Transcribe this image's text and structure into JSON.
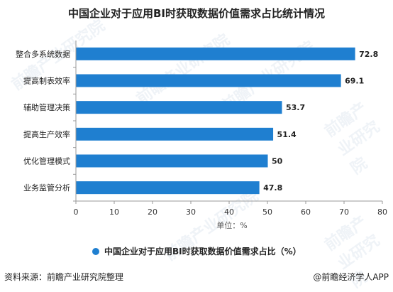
{
  "title": "中国企业对于应用BI时获取数据价值需求占比统计情况",
  "footer": {
    "source": "资料来源：前瞻产业研究院整理",
    "brand": "@前瞻经济学人APP"
  },
  "watermark": {
    "text": "前瞻产业研究院"
  },
  "chart_data": {
    "type": "bar",
    "orientation": "horizontal",
    "categories": [
      "整合多系统数据",
      "提高制表效率",
      "辅助管理决策",
      "提高生产效率",
      "优化管理模式",
      "业务监管分析"
    ],
    "series": [
      {
        "name": "中国企业对于应用BI时获取数据价值需求占比（%）",
        "values": [
          72.8,
          69.1,
          53.7,
          51.4,
          50,
          47.8
        ]
      }
    ],
    "value_labels": [
      "72.8",
      "69.1",
      "53.7",
      "51.4",
      "50",
      "47.8"
    ],
    "xlabel": "单位：%",
    "xlim": [
      0,
      80
    ],
    "xticks": [
      0,
      10,
      20,
      30,
      40,
      50,
      60,
      70,
      80
    ],
    "grid": false,
    "legend": "bottom",
    "bar_color": "#1f7fd0"
  }
}
